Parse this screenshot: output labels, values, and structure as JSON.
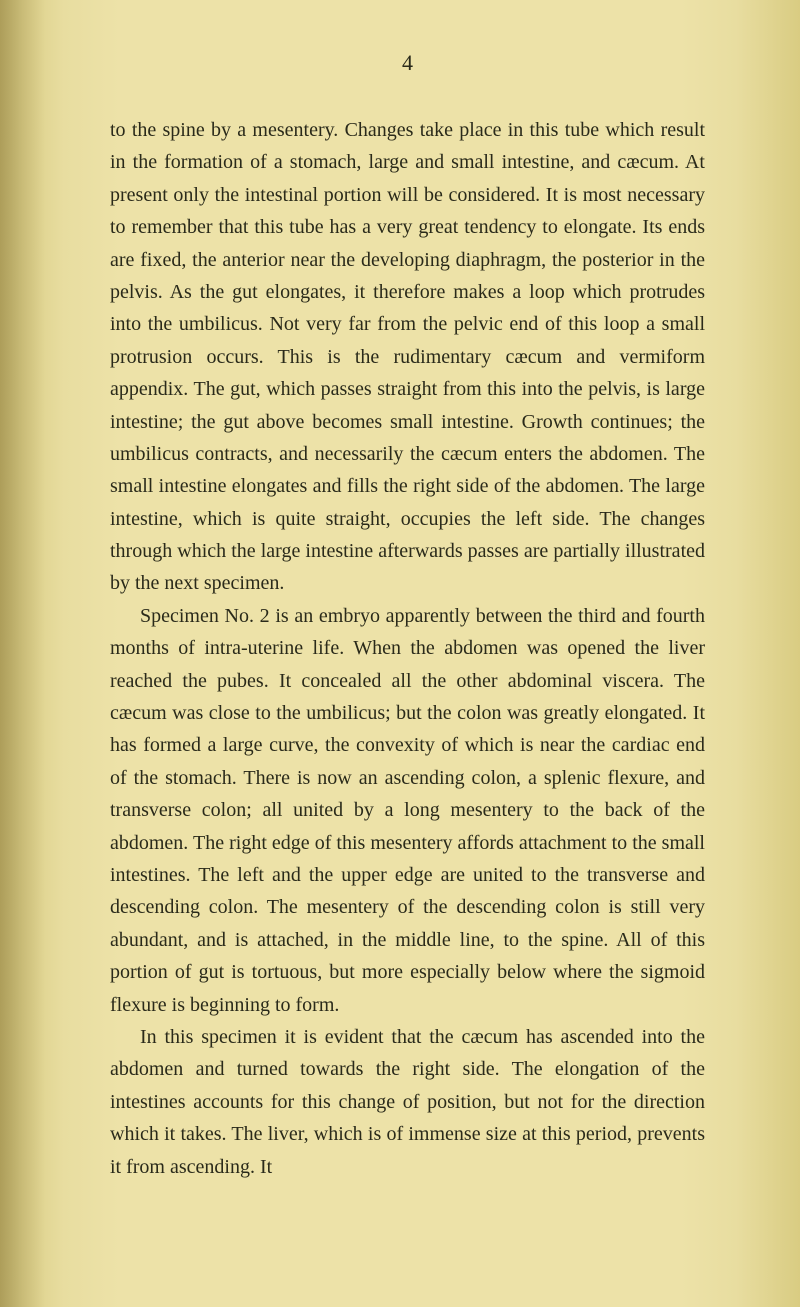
{
  "page_number": "4",
  "paragraphs": [
    "to the spine by a mesentery. Changes take place in this tube which result in the formation of a stomach, large and small intestine, and cæcum. At present only the intestinal portion will be considered. It is most necessary to remember that this tube has a very great tendency to elongate. Its ends are fixed, the anterior near the developing diaphragm, the posterior in the pelvis. As the gut elongates, it therefore makes a loop which protrudes into the umbilicus. Not very far from the pelvic end of this loop a small protrusion occurs. This is the rudimentary cæcum and vermiform appendix. The gut, which passes straight from this into the pelvis, is large intestine; the gut above becomes small intestine. Growth continues; the umbilicus contracts, and necessarily the cæcum enters the abdomen. The small intestine elongates and fills the right side of the abdomen. The large intestine, which is quite straight, occupies the left side. The changes through which the large intestine afterwards passes are partially illustrated by the next specimen.",
    "Specimen No. 2 is an embryo apparently between the third and fourth months of intra-uterine life. When the abdomen was opened the liver reached the pubes. It concealed all the other abdominal viscera. The cæcum was close to the umbilicus; but the colon was greatly elongated. It has formed a large curve, the convexity of which is near the cardiac end of the stomach. There is now an ascending colon, a splenic flexure, and transverse colon; all united by a long mesentery to the back of the abdomen. The right edge of this mesentery affords attachment to the small intestines. The left and the upper edge are united to the transverse and descending colon. The mesentery of the descending colon is still very abundant, and is attached, in the middle line, to the spine. All of this portion of gut is tortuous, but more especially below where the sigmoid flexure is beginning to form.",
    "In this specimen it is evident that the cæcum has ascended into the abdomen and turned towards the right side. The elongation of the intestines accounts for this change of position, but not for the direction which it takes. The liver, which is of immense size at this period, prevents it from ascending. It"
  ],
  "colors": {
    "background": "#ede2a8",
    "text": "#2a2a1a"
  },
  "typography": {
    "body_fontsize": 20,
    "line_height": 1.62,
    "font_family": "Georgia, serif"
  }
}
